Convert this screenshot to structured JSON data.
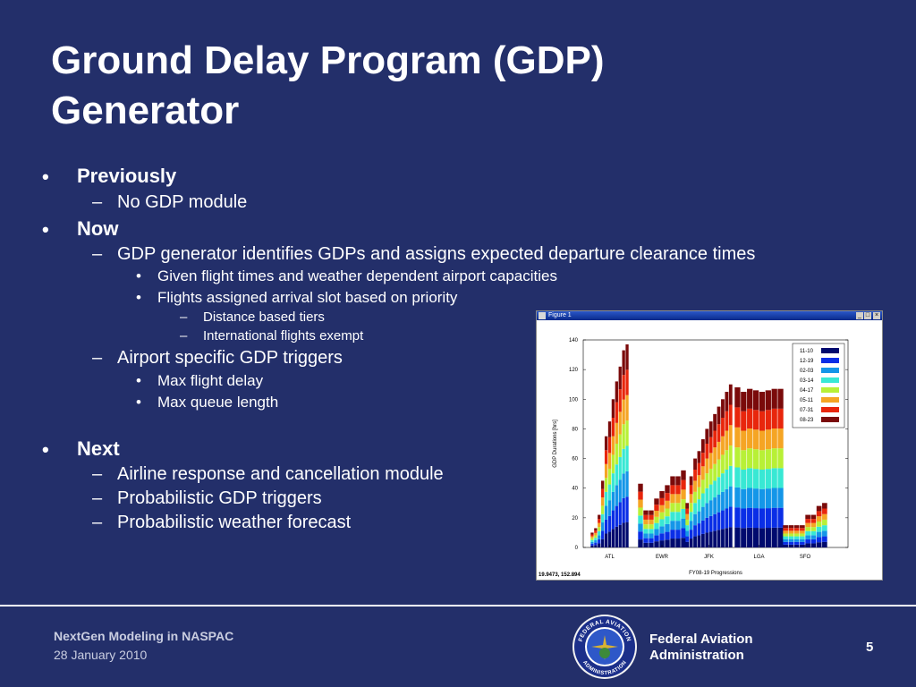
{
  "slide": {
    "title_line1": "Ground Delay Program (GDP)",
    "title_line2": "Generator"
  },
  "bullets": {
    "previously": "Previously",
    "no_gdp_module": "No GDP module",
    "now": "Now",
    "gdp_generator": "GDP generator identifies GDPs and assigns expected departure clearance times",
    "given_flight_times": "Given flight times and weather dependent airport capacities",
    "flights_assigned": "Flights assigned arrival slot based on priority",
    "distance_tiers": "Distance based tiers",
    "international_exempt": "International flights exempt",
    "airport_triggers": "Airport specific GDP triggers",
    "max_flight_delay": "Max flight delay",
    "max_queue_length": "Max queue length",
    "next": "Next",
    "airline_response": "Airline response and cancellation module",
    "prob_gdp_triggers": "Probabilistic GDP triggers",
    "prob_weather": "Probabilistic weather forecast",
    "markers": {
      "bullet": "•",
      "dash": "–"
    }
  },
  "figure_window": {
    "title": "Figure 1",
    "buttons": [
      "_",
      "□",
      "×"
    ],
    "coord_readout": "19.9473,  152.894"
  },
  "chart_data": {
    "type": "bar",
    "stacked": true,
    "xlabel": "FY08-19 Progressions",
    "ylabel": "GDP Durations [hrs]",
    "ylim": [
      0,
      140
    ],
    "yticks": [
      0,
      20,
      40,
      60,
      80,
      100,
      120,
      140
    ],
    "grid": false,
    "legend_position": "top-right",
    "categories": [
      "ATL",
      "EWR",
      "JFK",
      "LGA",
      "SFO"
    ],
    "series": [
      {
        "name": "11-10",
        "color": "#000a6e"
      },
      {
        "name": "12-19",
        "color": "#0a2ee6"
      },
      {
        "name": "02-03",
        "color": "#1496e8"
      },
      {
        "name": "03-14",
        "color": "#38e8d4"
      },
      {
        "name": "04-17",
        "color": "#b8f036"
      },
      {
        "name": "05-11",
        "color": "#f5a524"
      },
      {
        "name": "07-31",
        "color": "#e8260c"
      },
      {
        "name": "08-23",
        "color": "#7a0a0a"
      }
    ],
    "groups": [
      {
        "category": "ATL",
        "bars": [
          10,
          13,
          22,
          45,
          75,
          85,
          100,
          112,
          122,
          133,
          137
        ]
      },
      {
        "category": "EWR",
        "bars": [
          43,
          25,
          25,
          33,
          38,
          42,
          48,
          48,
          52
        ]
      },
      {
        "category": "JFK",
        "bars": [
          30,
          48,
          60,
          65,
          73,
          80,
          85,
          90,
          95,
          100,
          105,
          110
        ]
      },
      {
        "category": "LGA",
        "bars": [
          108,
          105,
          107,
          106,
          105,
          106,
          107,
          107
        ]
      },
      {
        "category": "SFO",
        "bars": [
          15,
          15,
          15,
          15,
          22,
          22,
          28,
          30
        ]
      }
    ]
  },
  "footer": {
    "title": "NextGen Modeling in NASPAC",
    "date": "28 January 2010",
    "agency_line1": "Federal Aviation",
    "agency_line2": "Administration",
    "page_number": "5",
    "seal_text_top": "FEDERAL AVIATION",
    "seal_text_bottom": "ADMINISTRATION"
  }
}
